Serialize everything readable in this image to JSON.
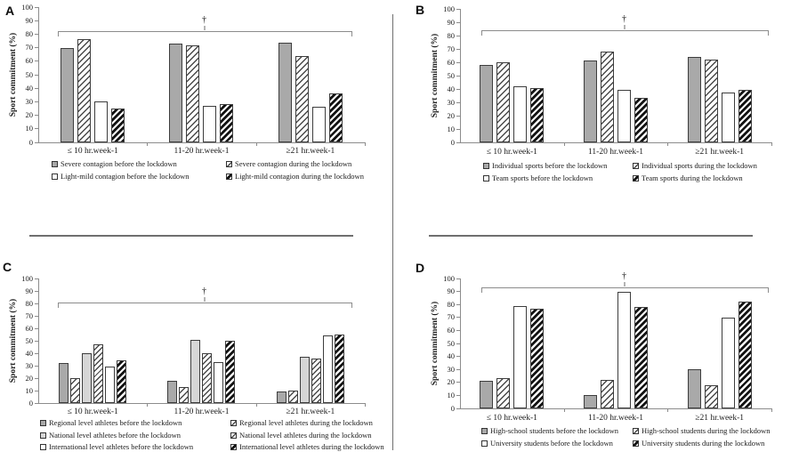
{
  "figure": {
    "ylabel": "Sport commitment (%)",
    "annotation_symbol": "†",
    "categories": [
      "≤ 10 hr.week-1",
      "11-20 hr.week-1",
      "≥21 hr.week-1"
    ],
    "colors": {
      "bar_gray": "#a9a9a9",
      "bar_light_gray": "#d6d6d6",
      "bar_white": "#ffffff",
      "bar_border": "#3d3d3d",
      "axis": "#8c8c8c",
      "divider": "#6f6f6f",
      "text": "#1a1a1a"
    }
  },
  "chart_data": [
    {
      "panel": "A",
      "type": "bar",
      "ylabel": "Sport commitment (%)",
      "ylim": [
        0,
        100
      ],
      "ytick_step": 10,
      "grid": false,
      "legend_position": "bottom",
      "categories": [
        "≤ 10 hr.week-1",
        "11-20 hr.week-1",
        "≥21 hr.week-1"
      ],
      "series": [
        {
          "name": "Severe contagion before the lockdown",
          "pattern": "solid-gray",
          "values": [
            70,
            73,
            74
          ]
        },
        {
          "name": "Severe contagion during the lockdown",
          "pattern": "hatch-light",
          "values": [
            76,
            72,
            64
          ]
        },
        {
          "name": "Light-mild contagion before the lockdown",
          "pattern": "solid-white",
          "values": [
            30,
            27,
            26
          ]
        },
        {
          "name": "Light-mild contagion during the lockdown",
          "pattern": "hatch-bold",
          "values": [
            25,
            28,
            36
          ]
        }
      ],
      "annotation": {
        "symbol": "†",
        "bracket_y": 82,
        "spans": "all-categories"
      }
    },
    {
      "panel": "B",
      "type": "bar",
      "ylabel": "Sport commitment (%)",
      "ylim": [
        0,
        100
      ],
      "ytick_step": 10,
      "grid": false,
      "legend_position": "bottom",
      "categories": [
        "≤ 10 hr.week-1",
        "11-20 hr.week-1",
        "≥21 hr.week-1"
      ],
      "series": [
        {
          "name": "Individual sports before the lockdown",
          "pattern": "solid-gray",
          "values": [
            58,
            61,
            64
          ]
        },
        {
          "name": "Individual sports during the lockdown",
          "pattern": "hatch-light",
          "values": [
            60,
            68,
            62
          ]
        },
        {
          "name": "Team sports before the lockdown",
          "pattern": "solid-white",
          "values": [
            42,
            39,
            37
          ]
        },
        {
          "name": "Team sports during the lockdown",
          "pattern": "hatch-bold",
          "values": [
            41,
            33,
            39
          ]
        }
      ],
      "annotation": {
        "symbol": "†",
        "bracket_y": 84,
        "spans": "all-categories"
      }
    },
    {
      "panel": "C",
      "type": "bar",
      "ylabel": "Sport commitment (%)",
      "ylim": [
        0,
        100
      ],
      "ytick_step": 10,
      "grid": false,
      "legend_position": "bottom",
      "categories": [
        "≤ 10 hr.week-1",
        "11-20 hr.week-1",
        "≥21 hr.week-1"
      ],
      "series": [
        {
          "name": "Regional level athletes before the lockdown",
          "pattern": "solid-gray",
          "values": [
            32,
            18,
            9
          ]
        },
        {
          "name": "Regional level athletes during the lockdown",
          "pattern": "hatch-light",
          "values": [
            20,
            13,
            10
          ]
        },
        {
          "name": "National level athletes before the lockdown",
          "pattern": "solid-lightgray",
          "values": [
            40,
            51,
            37
          ]
        },
        {
          "name": "National level athletes during the lockdown",
          "pattern": "hatch-medium",
          "values": [
            47,
            40,
            36
          ]
        },
        {
          "name": "International level athletes before the lockdown",
          "pattern": "solid-white",
          "values": [
            29,
            33,
            54
          ]
        },
        {
          "name": "International level athletes during the lockdown",
          "pattern": "hatch-bold",
          "values": [
            34,
            50,
            55
          ]
        }
      ],
      "annotation": {
        "symbol": "†",
        "bracket_y": 81,
        "spans": "all-categories"
      }
    },
    {
      "panel": "D",
      "type": "bar",
      "ylabel": "Sport commitment (%)",
      "ylim": [
        0,
        100
      ],
      "ytick_step": 10,
      "grid": false,
      "legend_position": "bottom",
      "categories": [
        "≤ 10 hr.week-1",
        "11-20 hr.week-1",
        "≥21 hr.week-1"
      ],
      "series": [
        {
          "name": "High-school students before the lockdown",
          "pattern": "solid-gray",
          "values": [
            21,
            10,
            30
          ]
        },
        {
          "name": "High-school students during the lockdown",
          "pattern": "hatch-light",
          "values": [
            23,
            22,
            18
          ]
        },
        {
          "name": "University students before the lockdown",
          "pattern": "solid-white",
          "values": [
            79,
            90,
            70
          ]
        },
        {
          "name": "University students during the lockdown",
          "pattern": "hatch-bold",
          "values": [
            77,
            78,
            82
          ]
        }
      ],
      "annotation": {
        "symbol": "†",
        "bracket_y": 93,
        "spans": "all-categories"
      }
    }
  ]
}
